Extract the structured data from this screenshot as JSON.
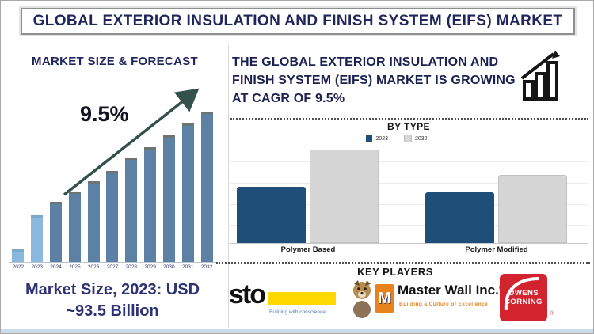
{
  "title": "GLOBAL EXTERIOR INSULATION AND FINISH SYSTEM (EIFS) MARKET",
  "left": {
    "chart_title": "MARKET SIZE & FORECAST",
    "cagr_label": "9.5%",
    "market_size": "Market Size, 2023: USD ~93.5 Billion"
  },
  "right": {
    "heading": "THE GLOBAL EXTERIOR INSULATION AND FINISH SYSTEM (EIFS) MARKET IS GROWING AT CAGR OF 9.5%",
    "key_players_title": "KEY PLAYERS"
  },
  "chart_data": [
    {
      "type": "bar",
      "title": "MARKET SIZE & FORECAST",
      "categories": [
        "2022",
        "2023",
        "2024",
        "2025",
        "2026",
        "2027",
        "2028",
        "2029",
        "2030",
        "2031",
        "2032"
      ],
      "values_relative": [
        7,
        30,
        39,
        46,
        53,
        60,
        69,
        76,
        84,
        92,
        100
      ],
      "historic_count": 2,
      "annotation": "9.5%",
      "xlabel": "",
      "ylabel": "",
      "y_axis_labels_visible": false
    },
    {
      "type": "bar",
      "title": "BY TYPE",
      "categories": [
        "Polymer Based",
        "Polymer Modified"
      ],
      "series": [
        {
          "name": "2023",
          "color": "#1f4e79",
          "values_relative": [
            60,
            54
          ]
        },
        {
          "name": "2032",
          "color": "#d6d6d6",
          "values_relative": [
            100,
            73
          ]
        }
      ],
      "legend_position": "top",
      "grid": true,
      "y_axis_labels_visible": false
    }
  ],
  "key_players": {
    "sto": {
      "name": "sto",
      "tagline": "Building with conscience"
    },
    "master_wall": {
      "name": "Master Wall Inc.",
      "reg": "®",
      "tagline": "Building a Culture of Excellence"
    },
    "owens_corning": {
      "line1": "OWENS",
      "line2": "CORNING",
      "reg": "®"
    }
  },
  "colors": {
    "bar_historic": "#8ab9dd",
    "bar_historic_cap": "#7aa9cc",
    "bar_forecast": "#5d81a4",
    "bar_forecast_cap": "#6d7573",
    "arrow": "#32524b",
    "title_navy": "#20265c",
    "series_2023_blue": "#1f4e79",
    "series_2032_gray": "#d6d6d6",
    "sto_yellow": "#ffd800",
    "masterwall_orange": "#e8821e",
    "owens_red": "#d2232e"
  }
}
